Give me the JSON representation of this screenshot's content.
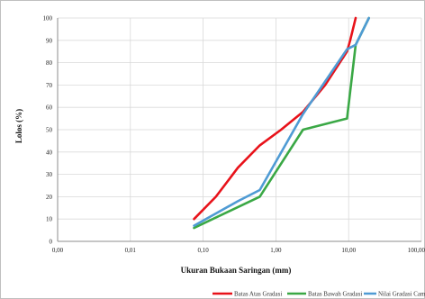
{
  "chart_data": {
    "type": "line",
    "xlabel": "Ukuran Bukaan Saringan (mm)",
    "ylabel": "Lolos (%)",
    "x_scale": "log",
    "xlim": [
      0.001,
      100
    ],
    "ylim": [
      0,
      100
    ],
    "x_ticks": [
      0.001,
      0.01,
      0.1,
      1,
      10,
      100
    ],
    "x_tick_labels": [
      "0,00",
      "0,01",
      "0,10",
      "1,00",
      "10,00",
      "100,00"
    ],
    "y_ticks": [
      0,
      10,
      20,
      30,
      40,
      50,
      60,
      70,
      80,
      90,
      100
    ],
    "y_tick_labels": [
      "0",
      "10",
      "20",
      "30",
      "40",
      "50",
      "60",
      "70",
      "80",
      "90",
      "100"
    ],
    "grid": true,
    "legend_position": "bottom",
    "series": [
      {
        "name": "Batas Atas Gradasi",
        "color": "#e8121a",
        "x": [
          0.075,
          0.15,
          0.3,
          0.6,
          1.18,
          2.36,
          4.75,
          9.5,
          10.5,
          12.5
        ],
        "y": [
          10,
          20,
          33,
          43,
          50,
          58,
          70,
          85,
          90,
          100
        ]
      },
      {
        "name": "Batas Bawah Gradasi",
        "color": "#3aa845",
        "x": [
          0.075,
          0.6,
          2.36,
          9.5,
          12.5,
          19.0
        ],
        "y": [
          6,
          20,
          50,
          55,
          88,
          100
        ]
      },
      {
        "name": "Nilai Gradasi Campuran",
        "color": "#4f9bd4",
        "x": [
          0.075,
          0.3,
          0.6,
          2.36,
          9.5,
          12.5,
          19.0
        ],
        "y": [
          7,
          18,
          23,
          57,
          86,
          88,
          100
        ]
      }
    ]
  }
}
